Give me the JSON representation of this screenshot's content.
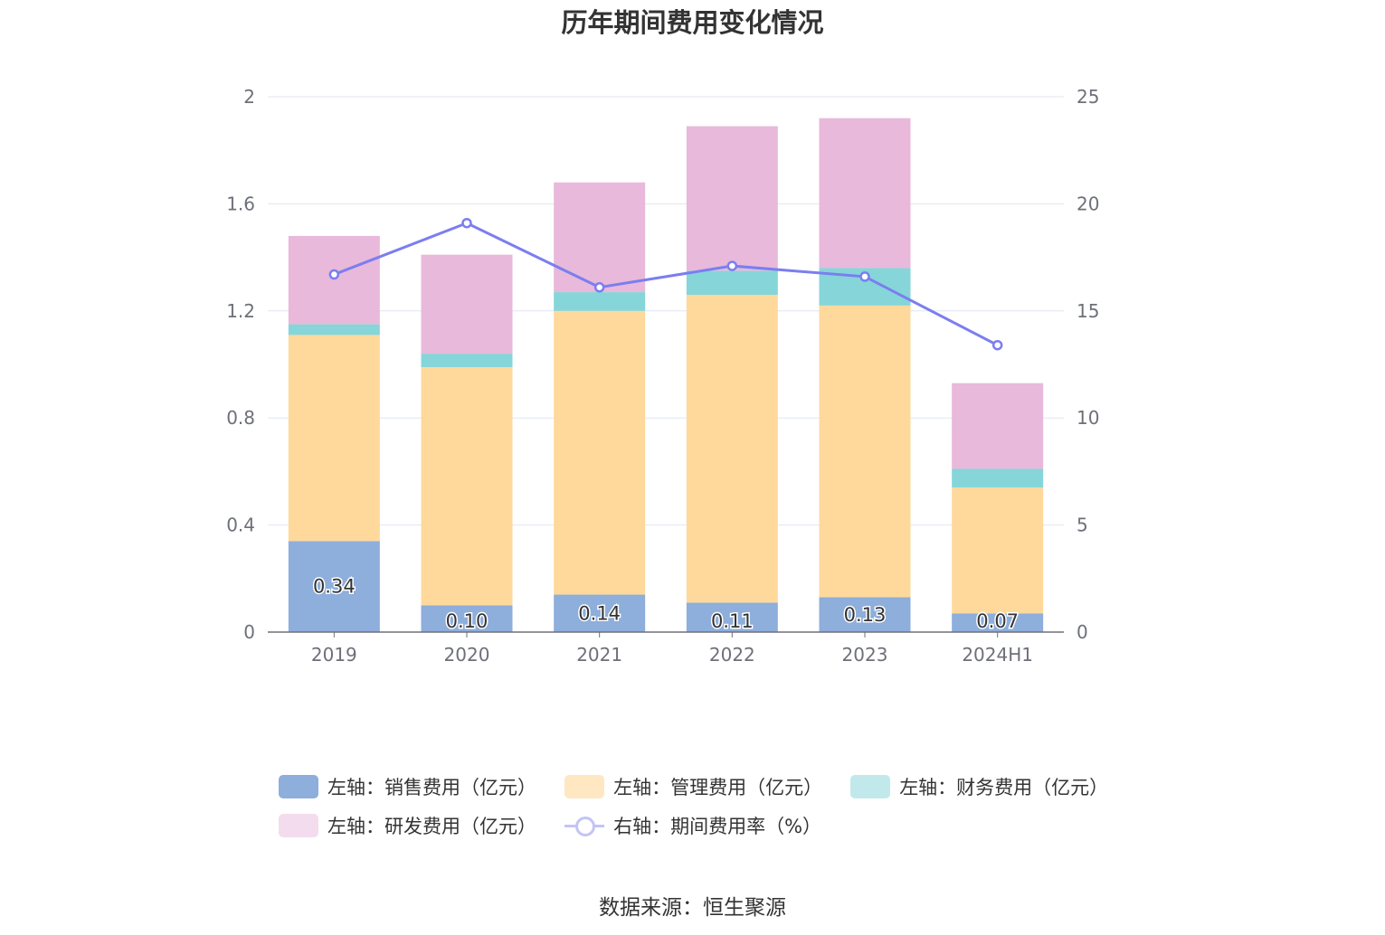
{
  "chart_data": {
    "type": "bar",
    "stacked": true,
    "title": "历年期间费用变化情况",
    "categories": [
      "2019",
      "2020",
      "2021",
      "2022",
      "2023",
      "2024H1"
    ],
    "y_left": {
      "ylim": [
        0,
        2
      ],
      "ticks": [
        "0",
        "0.4",
        "0.8",
        "1.2",
        "1.6",
        "2"
      ]
    },
    "y_right": {
      "ylim": [
        0,
        25
      ],
      "ticks": [
        "0",
        "5",
        "10",
        "15",
        "20",
        "25"
      ]
    },
    "grid": true,
    "legend_position": "bottom",
    "series": [
      {
        "name": "左轴：销售费用（亿元）",
        "axis": "left",
        "type": "bar",
        "color": "#8eaedb",
        "values": [
          0.34,
          0.1,
          0.14,
          0.11,
          0.13,
          0.07
        ],
        "labels": [
          "0.34",
          "0.10",
          "0.14",
          "0.11",
          "0.13",
          "0.07"
        ]
      },
      {
        "name": "左轴：管理费用（亿元）",
        "axis": "left",
        "type": "bar",
        "color": "#fed99b",
        "values": [
          0.77,
          0.89,
          1.06,
          1.15,
          1.09,
          0.47
        ]
      },
      {
        "name": "左轴：财务费用（亿元）",
        "axis": "left",
        "type": "bar",
        "color": "#86d5d9",
        "values": [
          0.04,
          0.05,
          0.07,
          0.09,
          0.14,
          0.07
        ]
      },
      {
        "name": "左轴：研发费用（亿元）",
        "axis": "left",
        "type": "bar",
        "color": "#e8b9da",
        "values": [
          0.33,
          0.37,
          0.41,
          0.54,
          0.56,
          0.32
        ]
      },
      {
        "name": "右轴：期间费用率（%）",
        "axis": "right",
        "type": "line",
        "color": "#7b7ef0",
        "values": [
          16.7,
          19.1,
          16.1,
          17.1,
          16.6,
          13.4
        ]
      }
    ],
    "legend_colors": [
      "#8eaedb",
      "#fed99b",
      "#c1e9eb",
      "#f2dcee",
      "#c3c4f5"
    ]
  },
  "source": "数据来源：恒生聚源"
}
